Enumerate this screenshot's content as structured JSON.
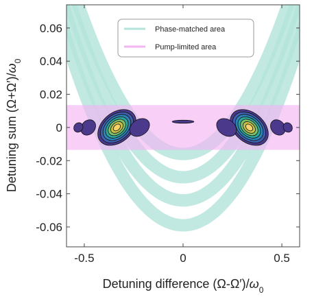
{
  "chart_data": {
    "type": "contour",
    "xlabel_parts": [
      "Detuning difference (Ω-Ω′)/",
      "ω",
      "0"
    ],
    "ylabel_parts": [
      "Detuning sum (Ω+Ω′)/",
      "ω",
      "0"
    ],
    "xlim": [
      -0.59,
      0.59
    ],
    "ylim": [
      -0.072,
      0.074
    ],
    "xticks": [
      -0.5,
      0,
      0.5
    ],
    "xtick_labels": [
      "-0.5",
      "0",
      "0.5"
    ],
    "yticks": [
      0.06,
      0.04,
      0.02,
      0,
      -0.02,
      -0.04,
      -0.06
    ],
    "ytick_labels": [
      "0.06",
      "0.04",
      "0.02",
      "0",
      "-0.02",
      "-0.04",
      "-0.06"
    ],
    "grid": false,
    "legend": {
      "placement": "top-center",
      "entries": [
        {
          "label": "Phase-matched area",
          "color": "#b2e3da"
        },
        {
          "label": "Pump-limited area",
          "color": "#f2b6f2"
        }
      ]
    },
    "pump_limited_band": {
      "y_min": -0.0135,
      "y_max": 0.0135,
      "color": "#f2b6f2"
    },
    "phase_matched_bands": [
      {
        "vertex_y": -0.016,
        "curvature": 0.32,
        "width": 0.0075
      },
      {
        "vertex_y": -0.03,
        "curvature": 0.32,
        "width": 0.0075
      },
      {
        "vertex_y": -0.044,
        "curvature": 0.32,
        "width": 0.0075
      },
      {
        "vertex_y": -0.059,
        "curvature": 0.32,
        "width": 0.0075
      }
    ],
    "contour_islands": [
      {
        "x": -0.335,
        "y": 0.0,
        "rx": 0.075,
        "ry": 0.013,
        "angle": 50,
        "levels": 7
      },
      {
        "x": 0.335,
        "y": 0.0,
        "rx": 0.075,
        "ry": 0.013,
        "angle": -50,
        "levels": 7
      },
      {
        "x": -0.22,
        "y": 0.0,
        "rx": 0.04,
        "ry": 0.0065,
        "angle": 55,
        "levels": 1
      },
      {
        "x": 0.22,
        "y": 0.0,
        "rx": 0.04,
        "ry": 0.0065,
        "angle": -55,
        "levels": 1
      },
      {
        "x": -0.48,
        "y": 0.0,
        "rx": 0.034,
        "ry": 0.005,
        "angle": 40,
        "levels": 1
      },
      {
        "x": 0.48,
        "y": 0.0,
        "rx": 0.034,
        "ry": 0.005,
        "angle": -40,
        "levels": 1
      },
      {
        "x": -0.53,
        "y": 0.0,
        "rx": 0.022,
        "ry": 0.003,
        "angle": 35,
        "levels": 1
      },
      {
        "x": 0.53,
        "y": 0.0,
        "rx": 0.022,
        "ry": 0.003,
        "angle": -35,
        "levels": 1
      },
      {
        "x": 0.0,
        "y": 0.0035,
        "rx": 0.055,
        "ry": 0.0009,
        "angle": 0,
        "levels": 1
      }
    ],
    "colormap": [
      "#4b3a8c",
      "#3f5fae",
      "#2d83b8",
      "#2ea69a",
      "#7cbf6b",
      "#c8c04a",
      "#f5d36a"
    ]
  }
}
